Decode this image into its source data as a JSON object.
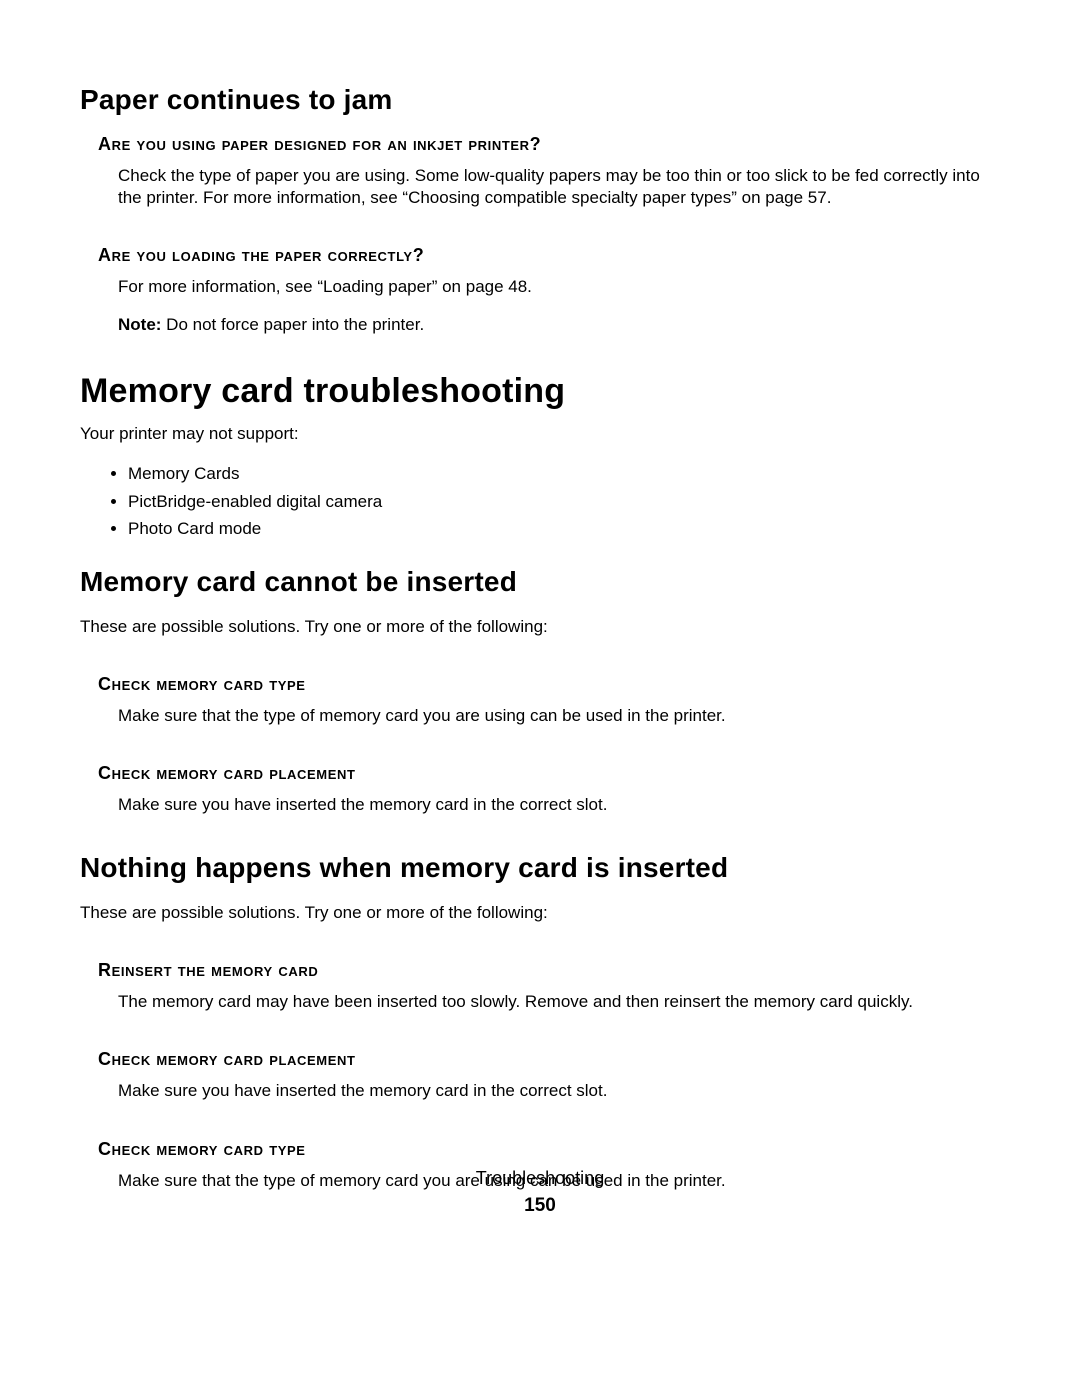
{
  "colors": {
    "background": "#ffffff",
    "text": "#000000"
  },
  "typography": {
    "body_font": "Segoe UI / Myriad Pro / Arial",
    "h1_size_pt": 26,
    "h2_size_pt": 21,
    "h3_size_pt": 14,
    "body_size_pt": 13
  },
  "sections": {
    "paper": {
      "title": "Paper continues to jam",
      "q1": {
        "heading": "Are you using paper designed for an inkjet printer?",
        "body": "Check the type of paper you are using. Some low-quality papers may be too thin or too slick to be fed correctly into the printer. For more information, see “Choosing compatible specialty paper types” on page 57."
      },
      "q2": {
        "heading": "Are you loading the paper correctly?",
        "body1": "For more information, see “Loading paper” on page 48.",
        "note_label": "Note:",
        "note_body": " Do not force paper into the printer."
      }
    },
    "memory": {
      "title": "Memory card troubleshooting",
      "intro": "Your printer may not support:",
      "bullets": [
        "Memory Cards",
        "PictBridge-enabled digital camera",
        "Photo Card mode"
      ],
      "cannot_insert": {
        "title": "Memory card cannot be inserted",
        "intro": "These are possible solutions. Try one or more of the following:",
        "check_type": {
          "heading": "Check memory card type",
          "body": "Make sure that the type of memory card you are using can be used in the printer."
        },
        "check_placement": {
          "heading": "Check memory card placement",
          "body": "Make sure you have inserted the memory card in the correct slot."
        }
      },
      "nothing_happens": {
        "title": "Nothing happens when memory card is inserted",
        "intro": "These are possible solutions. Try one or more of the following:",
        "reinsert": {
          "heading": "Reinsert the memory card",
          "body": "The memory card may have been inserted too slowly. Remove and then reinsert the memory card quickly."
        },
        "check_placement": {
          "heading": "Check memory card placement",
          "body": "Make sure you have inserted the memory card in the correct slot."
        },
        "check_type": {
          "heading": "Check memory card type",
          "body": "Make sure that the type of memory card you are using can be used in the printer."
        }
      }
    }
  },
  "footer": {
    "section": "Troubleshooting",
    "page": "150"
  }
}
